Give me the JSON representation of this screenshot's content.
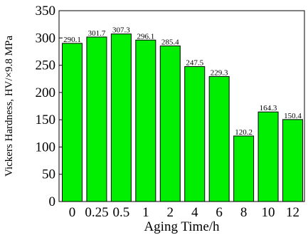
{
  "chart_data": {
    "type": "bar",
    "categories": [
      "0",
      "0.25",
      "0.5",
      "1",
      "2",
      "4",
      "6",
      "8",
      "10",
      "12"
    ],
    "values": [
      290.1,
      301.7,
      307.3,
      296.1,
      285.4,
      247.5,
      229.3,
      120.2,
      164.3,
      150.4
    ],
    "value_labels": [
      "290.1",
      "301.7",
      "307.3",
      "296.1",
      "285.4",
      "247.5",
      "229.3",
      "120.2",
      "164.3",
      "150.4"
    ],
    "xlabel": "Aging Time/h",
    "ylabel": "Vickers Hardness, HV/×9.8 MPa",
    "ylim": [
      0,
      350
    ],
    "yticks": [
      "0",
      "50",
      "100",
      "150",
      "200",
      "250",
      "300",
      "350"
    ],
    "bar_color": "#00ee00",
    "grid": false,
    "legend": "none"
  }
}
